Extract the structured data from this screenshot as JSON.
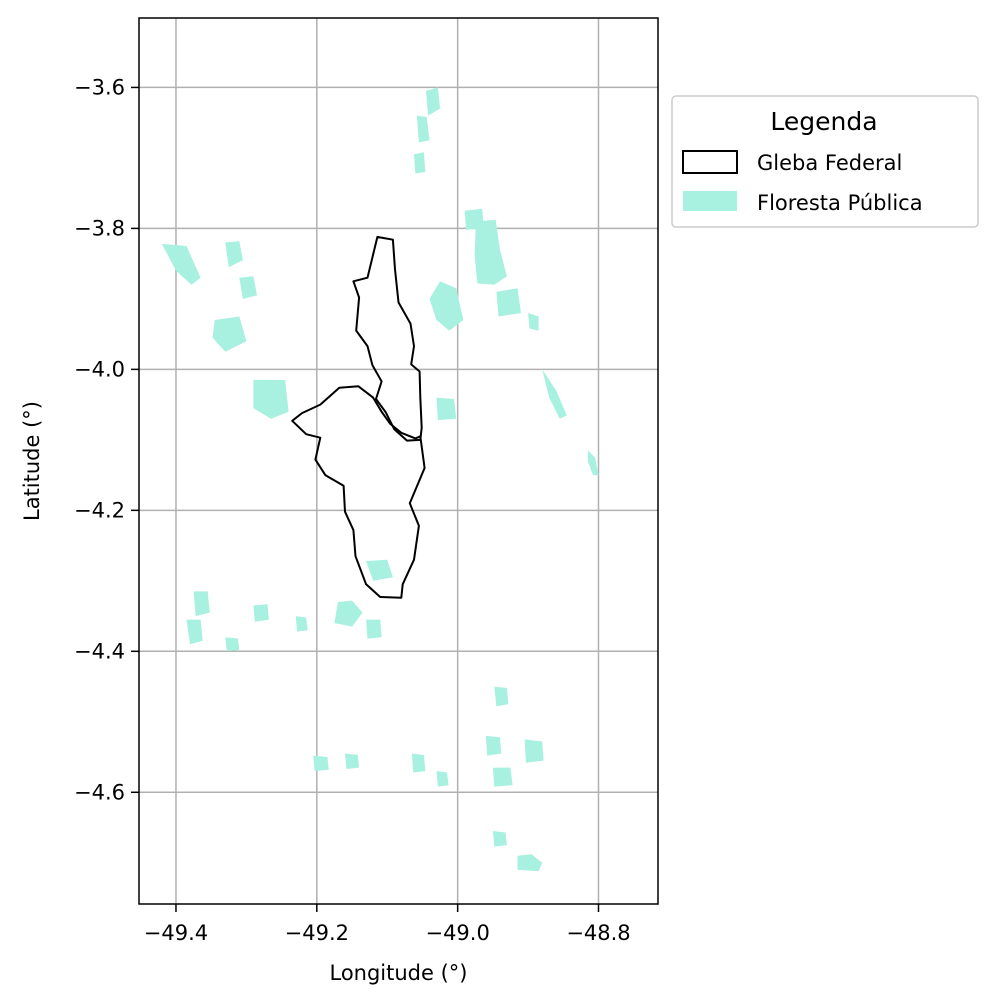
{
  "chart_data": {
    "type": "map",
    "xlabel": "Longitude (°)",
    "ylabel": "Latitude (°)",
    "xlim": [
      -49.4525,
      -48.7155
    ],
    "ylim": [
      -4.7585,
      -3.5015
    ],
    "xticks": [
      -49.4,
      -49.2,
      -49.0,
      -48.8
    ],
    "yticks": [
      -3.6,
      -3.8,
      -4.0,
      -4.2,
      -4.4,
      -4.6
    ],
    "xtick_labels": [
      "−49.4",
      "−49.2",
      "−49.0",
      "−48.8"
    ],
    "ytick_labels": [
      "−3.6",
      "−3.8",
      "−4.0",
      "−4.2",
      "−4.4",
      "−4.6"
    ],
    "grid": true,
    "legend": {
      "title": "Legenda",
      "placement": "outside-top-right",
      "entries": [
        {
          "label": "Gleba Federal",
          "style": "outline",
          "color": "#000000"
        },
        {
          "label": "Floresta Pública",
          "style": "fill",
          "color": "#a8f0df"
        }
      ]
    },
    "layers": [
      {
        "name": "Gleba Federal",
        "style": "outline",
        "color": "#000000",
        "polygons": [
          [
            [
              -49.114,
              -3.812
            ],
            [
              -49.092,
              -3.816
            ],
            [
              -49.089,
              -3.858
            ],
            [
              -49.084,
              -3.905
            ],
            [
              -49.067,
              -3.935
            ],
            [
              -49.062,
              -3.967
            ],
            [
              -49.066,
              -3.993
            ],
            [
              -49.054,
              -4.003
            ],
            [
              -49.053,
              -4.04
            ],
            [
              -49.051,
              -4.083
            ],
            [
              -49.053,
              -4.1
            ],
            [
              -49.072,
              -4.101
            ],
            [
              -49.09,
              -4.085
            ],
            [
              -49.102,
              -4.061
            ],
            [
              -49.116,
              -4.042
            ],
            [
              -49.108,
              -4.017
            ],
            [
              -49.121,
              -3.994
            ],
            [
              -49.128,
              -3.967
            ],
            [
              -49.144,
              -3.945
            ],
            [
              -49.14,
              -3.898
            ],
            [
              -49.148,
              -3.875
            ],
            [
              -49.128,
              -3.87
            ],
            [
              -49.114,
              -3.812
            ]
          ],
          [
            [
              -49.053,
              -4.095
            ],
            [
              -49.047,
              -4.14
            ],
            [
              -49.068,
              -4.19
            ],
            [
              -49.055,
              -4.222
            ],
            [
              -49.062,
              -4.27
            ],
            [
              -49.078,
              -4.305
            ],
            [
              -49.08,
              -4.324
            ],
            [
              -49.11,
              -4.323
            ],
            [
              -49.13,
              -4.305
            ],
            [
              -49.145,
              -4.265
            ],
            [
              -49.148,
              -4.228
            ],
            [
              -49.16,
              -4.202
            ],
            [
              -49.162,
              -4.165
            ],
            [
              -49.188,
              -4.15
            ],
            [
              -49.202,
              -4.128
            ],
            [
              -49.195,
              -4.097
            ],
            [
              -49.215,
              -4.092
            ],
            [
              -49.235,
              -4.073
            ],
            [
              -49.221,
              -4.062
            ],
            [
              -49.195,
              -4.05
            ],
            [
              -49.168,
              -4.026
            ],
            [
              -49.141,
              -4.024
            ],
            [
              -49.12,
              -4.04
            ],
            [
              -49.108,
              -4.06
            ],
            [
              -49.096,
              -4.077
            ],
            [
              -49.08,
              -4.09
            ],
            [
              -49.06,
              -4.098
            ],
            [
              -49.053,
              -4.095
            ]
          ]
        ]
      },
      {
        "name": "Floresta Pública",
        "style": "fill",
        "color": "#a8f0df",
        "polygons": [
          [
            [
              -48.974,
              -3.79
            ],
            [
              -48.946,
              -3.788
            ],
            [
              -48.94,
              -3.83
            ],
            [
              -48.93,
              -3.868
            ],
            [
              -48.948,
              -3.88
            ],
            [
              -48.972,
              -3.878
            ],
            [
              -48.976,
              -3.838
            ]
          ],
          [
            [
              -48.945,
              -3.89
            ],
            [
              -48.915,
              -3.885
            ],
            [
              -48.91,
              -3.92
            ],
            [
              -48.942,
              -3.925
            ]
          ],
          [
            [
              -48.99,
              -3.775
            ],
            [
              -48.965,
              -3.772
            ],
            [
              -48.963,
              -3.8
            ],
            [
              -48.988,
              -3.802
            ]
          ],
          [
            [
              -49.025,
              -3.875
            ],
            [
              -49.002,
              -3.885
            ],
            [
              -48.992,
              -3.93
            ],
            [
              -49.012,
              -3.945
            ],
            [
              -49.03,
              -3.93
            ],
            [
              -49.04,
              -3.9
            ]
          ],
          [
            [
              -49.045,
              -3.605
            ],
            [
              -49.028,
              -3.6
            ],
            [
              -49.025,
              -3.63
            ],
            [
              -49.042,
              -3.64
            ]
          ],
          [
            [
              -49.058,
              -3.64
            ],
            [
              -49.044,
              -3.642
            ],
            [
              -49.04,
              -3.675
            ],
            [
              -49.055,
              -3.678
            ]
          ],
          [
            [
              -49.062,
              -3.695
            ],
            [
              -49.048,
              -3.692
            ],
            [
              -49.046,
              -3.72
            ],
            [
              -49.06,
              -3.722
            ]
          ],
          [
            [
              -49.42,
              -3.822
            ],
            [
              -49.385,
              -3.825
            ],
            [
              -49.365,
              -3.87
            ],
            [
              -49.378,
              -3.88
            ],
            [
              -49.4,
              -3.86
            ]
          ],
          [
            [
              -49.33,
              -3.82
            ],
            [
              -49.31,
              -3.818
            ],
            [
              -49.305,
              -3.845
            ],
            [
              -49.325,
              -3.855
            ]
          ],
          [
            [
              -49.31,
              -3.87
            ],
            [
              -49.29,
              -3.868
            ],
            [
              -49.285,
              -3.895
            ],
            [
              -49.305,
              -3.9
            ]
          ],
          [
            [
              -49.345,
              -3.93
            ],
            [
              -49.31,
              -3.925
            ],
            [
              -49.3,
              -3.96
            ],
            [
              -49.33,
              -3.975
            ],
            [
              -49.348,
              -3.955
            ]
          ],
          [
            [
              -49.29,
              -4.015
            ],
            [
              -49.245,
              -4.015
            ],
            [
              -49.24,
              -4.06
            ],
            [
              -49.265,
              -4.07
            ],
            [
              -49.29,
              -4.055
            ]
          ],
          [
            [
              -49.03,
              -4.04
            ],
            [
              -49.005,
              -4.042
            ],
            [
              -49.002,
              -4.07
            ],
            [
              -49.028,
              -4.072
            ]
          ],
          [
            [
              -48.9,
              -3.92
            ],
            [
              -48.885,
              -3.925
            ],
            [
              -48.885,
              -3.945
            ],
            [
              -48.898,
              -3.942
            ]
          ],
          [
            [
              -48.88,
              -4.0
            ],
            [
              -48.86,
              -4.03
            ],
            [
              -48.845,
              -4.065
            ],
            [
              -48.855,
              -4.07
            ],
            [
              -48.87,
              -4.04
            ]
          ],
          [
            [
              -48.815,
              -4.115
            ],
            [
              -48.805,
              -4.125
            ],
            [
              -48.8,
              -4.15
            ],
            [
              -48.808,
              -4.15
            ],
            [
              -48.815,
              -4.13
            ]
          ],
          [
            [
              -49.17,
              -4.33
            ],
            [
              -49.15,
              -4.328
            ],
            [
              -49.135,
              -4.345
            ],
            [
              -49.15,
              -4.365
            ],
            [
              -49.175,
              -4.36
            ]
          ],
          [
            [
              -49.13,
              -4.272
            ],
            [
              -49.1,
              -4.27
            ],
            [
              -49.092,
              -4.295
            ],
            [
              -49.12,
              -4.3
            ]
          ],
          [
            [
              -49.13,
              -4.355
            ],
            [
              -49.11,
              -4.355
            ],
            [
              -49.108,
              -4.38
            ],
            [
              -49.128,
              -4.382
            ]
          ],
          [
            [
              -49.375,
              -4.315
            ],
            [
              -49.355,
              -4.315
            ],
            [
              -49.352,
              -4.345
            ],
            [
              -49.372,
              -4.35
            ]
          ],
          [
            [
              -49.385,
              -4.355
            ],
            [
              -49.365,
              -4.355
            ],
            [
              -49.362,
              -4.385
            ],
            [
              -49.38,
              -4.39
            ]
          ],
          [
            [
              -49.29,
              -4.335
            ],
            [
              -49.27,
              -4.333
            ],
            [
              -49.268,
              -4.355
            ],
            [
              -49.288,
              -4.358
            ]
          ],
          [
            [
              -48.948,
              -4.45
            ],
            [
              -48.93,
              -4.452
            ],
            [
              -48.928,
              -4.475
            ],
            [
              -48.945,
              -4.478
            ]
          ],
          [
            [
              -48.905,
              -4.525
            ],
            [
              -48.88,
              -4.528
            ],
            [
              -48.878,
              -4.555
            ],
            [
              -48.903,
              -4.558
            ]
          ],
          [
            [
              -48.95,
              -4.565
            ],
            [
              -48.925,
              -4.565
            ],
            [
              -48.922,
              -4.59
            ],
            [
              -48.948,
              -4.592
            ]
          ],
          [
            [
              -48.96,
              -4.52
            ],
            [
              -48.94,
              -4.522
            ],
            [
              -48.938,
              -4.545
            ],
            [
              -48.958,
              -4.548
            ]
          ],
          [
            [
              -48.915,
              -4.69
            ],
            [
              -48.895,
              -4.688
            ],
            [
              -48.88,
              -4.7
            ],
            [
              -48.885,
              -4.712
            ],
            [
              -48.915,
              -4.71
            ]
          ],
          [
            [
              -48.95,
              -4.655
            ],
            [
              -48.932,
              -4.657
            ],
            [
              -48.93,
              -4.675
            ],
            [
              -48.948,
              -4.677
            ]
          ],
          [
            [
              -49.065,
              -4.545
            ],
            [
              -49.048,
              -4.547
            ],
            [
              -49.046,
              -4.57
            ],
            [
              -49.063,
              -4.572
            ]
          ],
          [
            [
              -49.205,
              -4.548
            ],
            [
              -49.185,
              -4.55
            ],
            [
              -49.183,
              -4.568
            ],
            [
              -49.203,
              -4.57
            ]
          ],
          [
            [
              -49.16,
              -4.545
            ],
            [
              -49.142,
              -4.547
            ],
            [
              -49.14,
              -4.565
            ],
            [
              -49.158,
              -4.567
            ]
          ],
          [
            [
              -49.03,
              -4.57
            ],
            [
              -49.015,
              -4.572
            ],
            [
              -49.013,
              -4.59
            ],
            [
              -49.028,
              -4.592
            ]
          ],
          [
            [
              -49.33,
              -4.38
            ],
            [
              -49.312,
              -4.382
            ],
            [
              -49.31,
              -4.398
            ],
            [
              -49.328,
              -4.4
            ]
          ],
          [
            [
              -49.23,
              -4.35
            ],
            [
              -49.215,
              -4.352
            ],
            [
              -49.213,
              -4.37
            ],
            [
              -49.228,
              -4.372
            ]
          ]
        ]
      }
    ]
  }
}
